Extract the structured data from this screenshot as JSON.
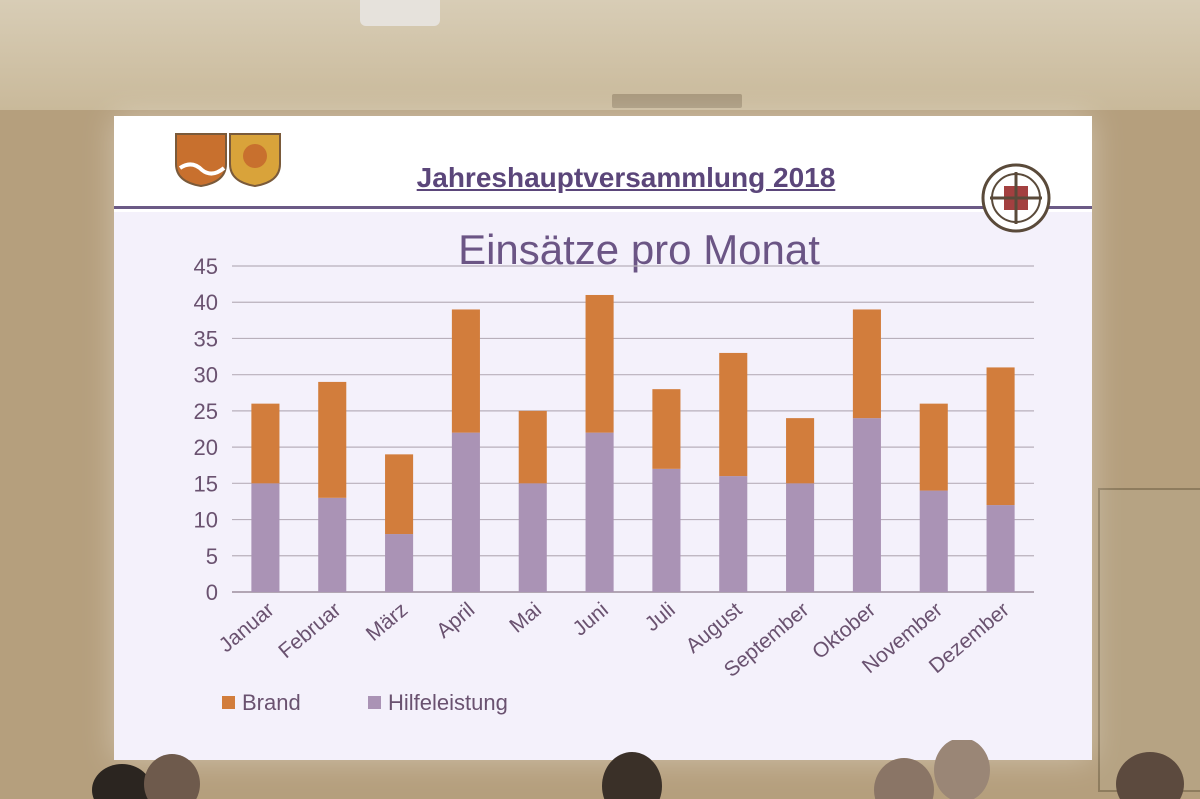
{
  "slide": {
    "heading": "Jahreshauptversammlung 2018"
  },
  "colors": {
    "brand": "#d27d3c",
    "hilfeleistung": "#aa93b5",
    "heading": "#5b467a",
    "title": "#6b5585",
    "axis_text": "#6a5270"
  },
  "chart_data": {
    "type": "bar",
    "stacked": true,
    "title": "Einsätze pro Monat",
    "categories": [
      "Januar",
      "Februar",
      "März",
      "April",
      "Mai",
      "Juni",
      "Juli",
      "August",
      "September",
      "Oktober",
      "November",
      "Dezember"
    ],
    "series": [
      {
        "name": "Hilfeleistung",
        "values": [
          15,
          13,
          8,
          22,
          15,
          22,
          17,
          16,
          15,
          24,
          14,
          12
        ]
      },
      {
        "name": "Brand",
        "values": [
          11,
          16,
          11,
          17,
          10,
          19,
          11,
          17,
          9,
          15,
          12,
          19
        ]
      }
    ],
    "yticks": [
      "0",
      "5",
      "10",
      "15",
      "20",
      "25",
      "30",
      "35",
      "40",
      "45"
    ],
    "ylim": [
      0,
      45
    ],
    "grid": true,
    "legend_position": "bottom-left"
  }
}
